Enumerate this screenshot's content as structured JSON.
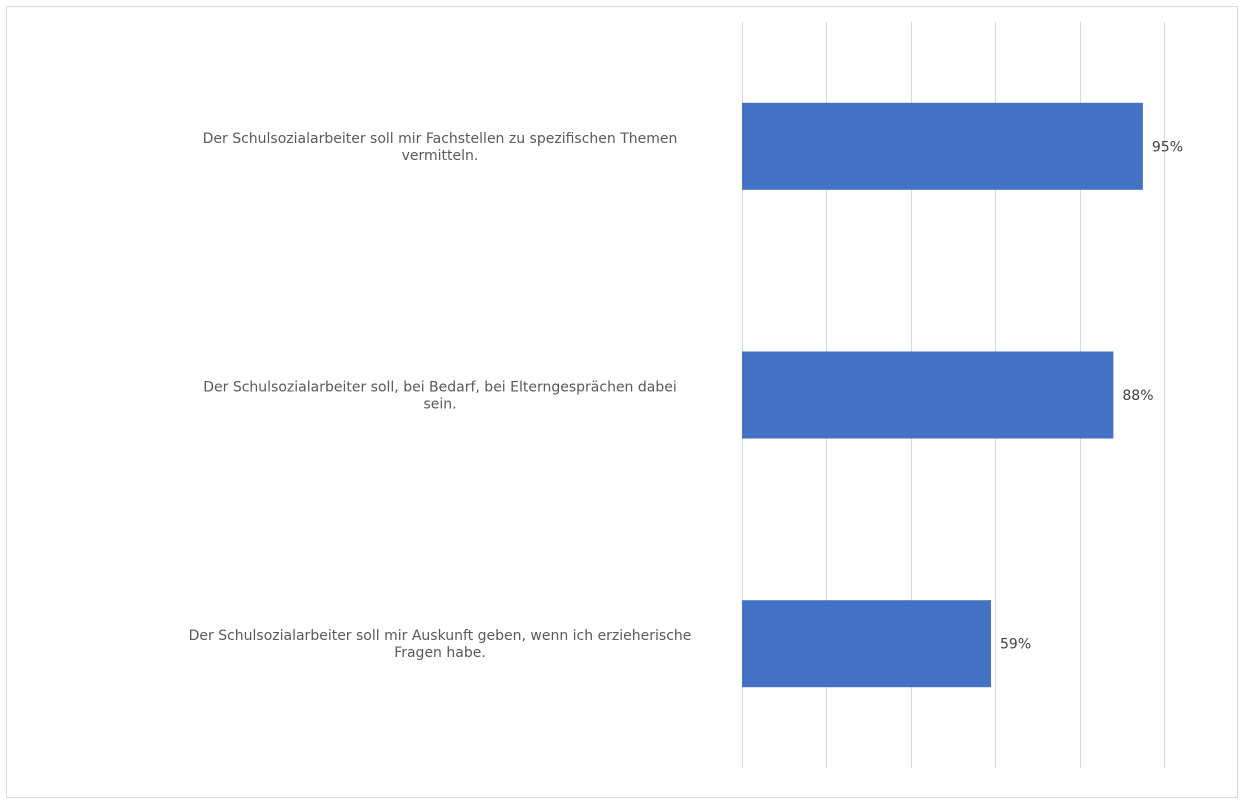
{
  "chart_data": {
    "type": "bar",
    "orientation": "horizontal",
    "categories": [
      "Der Schulsozialarbeiter soll mir Fachstellen zu spezifischen Themen vermitteln.",
      "Der Schulsozialarbeiter soll, bei Bedarf, bei Elterngesprächen dabei sein.",
      "Der Schulsozialarbeiter soll mir Auskunft geben, wenn ich erzieherische Fragen habe."
    ],
    "category_lines": [
      [
        "Der Schulsozialarbeiter soll mir Fachstellen zu spezifischen Themen",
        "vermitteln."
      ],
      [
        "Der Schulsozialarbeiter soll, bei Bedarf, bei Elterngesprächen dabei",
        "sein."
      ],
      [
        "Der Schulsozialarbeiter soll mir Auskunft geben, wenn ich erzieherische",
        "Fragen habe."
      ]
    ],
    "values": [
      95,
      88,
      59
    ],
    "data_labels": [
      "95%",
      "88%",
      "59%"
    ],
    "unit": "%",
    "xlim": [
      0,
      100
    ],
    "x_gridlines": [
      0,
      20,
      40,
      60,
      80,
      100
    ],
    "grid": true,
    "legend": false,
    "bar_color": "#4472c4",
    "gridline_color": "#d9d9d9",
    "title": "",
    "xlabel": "",
    "ylabel": ""
  }
}
